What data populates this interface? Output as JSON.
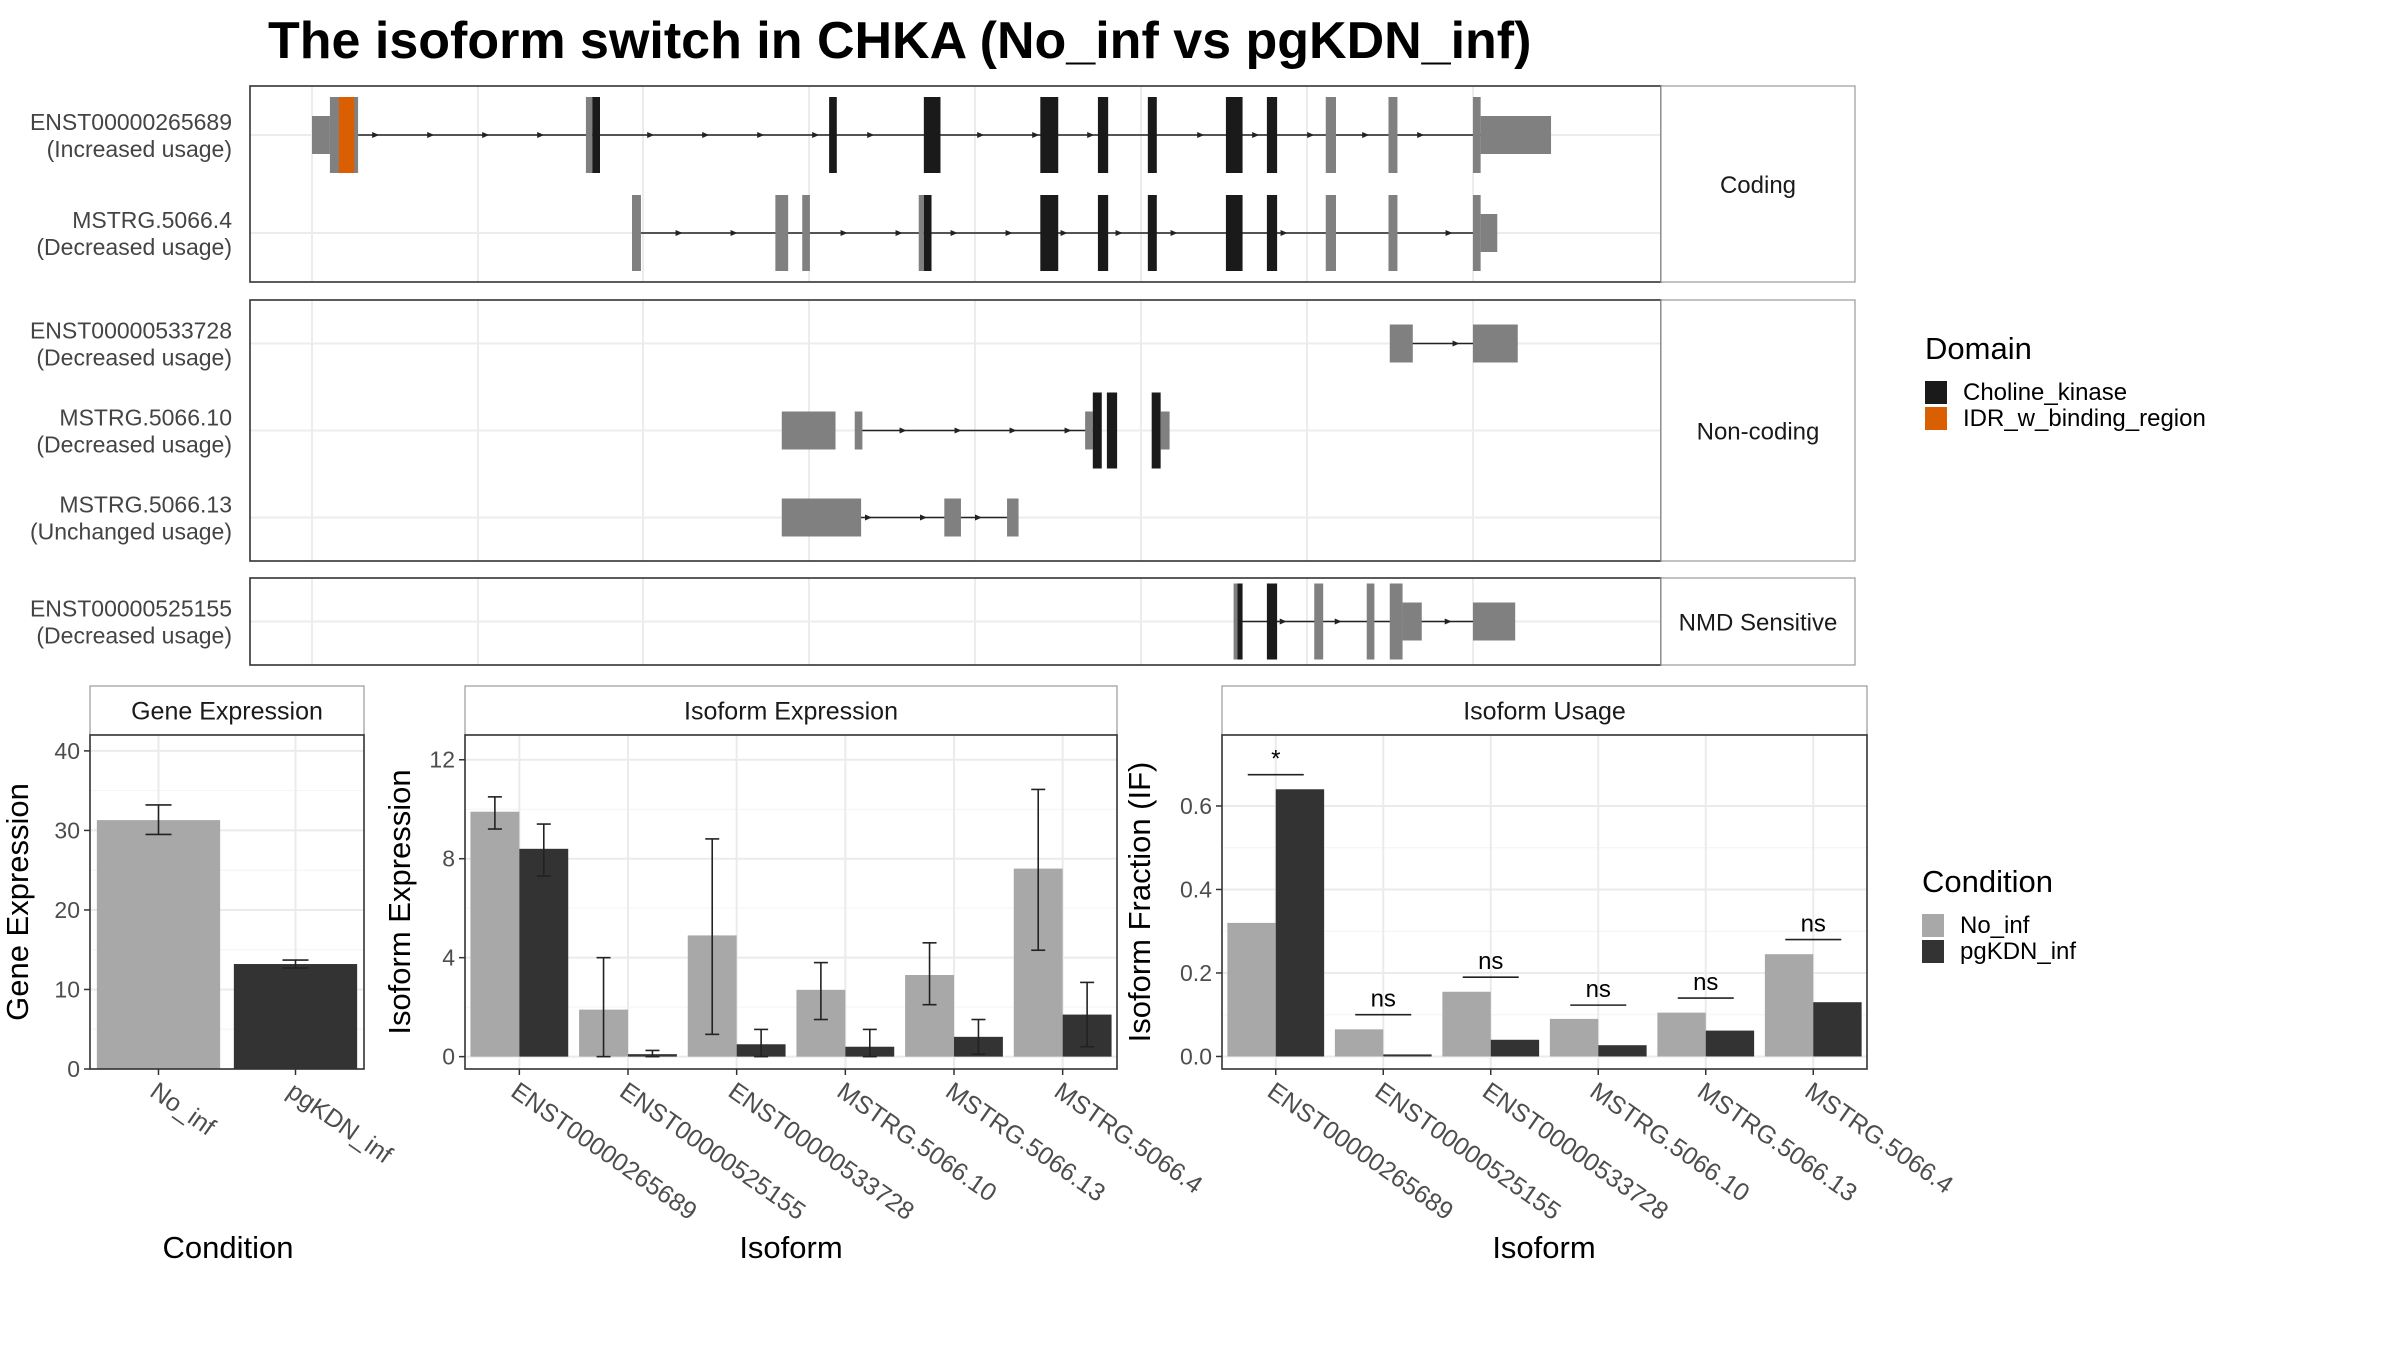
{
  "title": "The isoform switch in CHKA (No_inf vs pgKDN_inf)",
  "structure": {
    "x_range": [
      0,
      1000
    ],
    "panels": [
      {
        "label": "Coding",
        "isoforms": [
          {
            "name": "ENST00000265689",
            "usage": "(Increased usage)",
            "span": [
              15,
              950
            ],
            "exons": [
              {
                "s": 0,
                "e": 14,
                "t": "u"
              },
              {
                "s": 14,
                "e": 36,
                "t": "c"
              },
              {
                "s": 21,
                "e": 33,
                "t": "idr"
              },
              {
                "s": 214,
                "e": 219,
                "t": "c"
              },
              {
                "s": 219,
                "e": 225,
                "t": "d"
              },
              {
                "s": 404,
                "e": 410,
                "t": "d"
              },
              {
                "s": 478,
                "e": 491,
                "t": "d"
              },
              {
                "s": 569,
                "e": 583,
                "t": "d"
              },
              {
                "s": 614,
                "e": 622,
                "t": "d"
              },
              {
                "s": 653,
                "e": 660,
                "t": "d"
              },
              {
                "s": 714,
                "e": 727,
                "t": "d"
              },
              {
                "s": 746,
                "e": 754,
                "t": "d"
              },
              {
                "s": 792,
                "e": 800,
                "t": "c"
              },
              {
                "s": 841,
                "e": 848,
                "t": "c"
              },
              {
                "s": 907,
                "e": 913,
                "t": "c"
              },
              {
                "s": 913,
                "e": 968,
                "t": "u"
              }
            ]
          },
          {
            "name": "MSTRG.5066.4",
            "usage": "(Decreased usage)",
            "span": [
              252,
              910
            ],
            "exons": [
              {
                "s": 250,
                "e": 257,
                "t": "c"
              },
              {
                "s": 362,
                "e": 372,
                "t": "c"
              },
              {
                "s": 383,
                "e": 389,
                "t": "c"
              },
              {
                "s": 474,
                "e": 478,
                "t": "c"
              },
              {
                "s": 478,
                "e": 484,
                "t": "d"
              },
              {
                "s": 569,
                "e": 583,
                "t": "d"
              },
              {
                "s": 614,
                "e": 622,
                "t": "d"
              },
              {
                "s": 653,
                "e": 660,
                "t": "d"
              },
              {
                "s": 714,
                "e": 727,
                "t": "d"
              },
              {
                "s": 746,
                "e": 754,
                "t": "d"
              },
              {
                "s": 792,
                "e": 800,
                "t": "c"
              },
              {
                "s": 841,
                "e": 848,
                "t": "c"
              },
              {
                "s": 907,
                "e": 913,
                "t": "c"
              },
              {
                "s": 913,
                "e": 926,
                "t": "u"
              }
            ]
          }
        ]
      },
      {
        "label": "Non-coding",
        "isoforms": [
          {
            "name": "ENST00000533728",
            "usage": "(Decreased usage)",
            "span": [
              859,
              909
            ],
            "exons": [
              {
                "s": 842,
                "e": 860,
                "t": "u"
              },
              {
                "s": 907,
                "e": 942,
                "t": "u"
              }
            ]
          },
          {
            "name": "MSTRG.5066.10",
            "usage": "(Decreased usage)",
            "span": [
              427,
              614
            ],
            "exons": [
              {
                "s": 367,
                "e": 409,
                "t": "u"
              },
              {
                "s": 424,
                "e": 430,
                "t": "u"
              },
              {
                "s": 604,
                "e": 610,
                "t": "u"
              },
              {
                "s": 610,
                "e": 617,
                "t": "d"
              },
              {
                "s": 621,
                "e": 629,
                "t": "d"
              },
              {
                "s": 656,
                "e": 663,
                "t": "d"
              },
              {
                "s": 663,
                "e": 670,
                "t": "u"
              }
            ]
          },
          {
            "name": "MSTRG.5066.13",
            "usage": "(Unchanged usage)",
            "span": [
              400,
              545
            ],
            "exons": [
              {
                "s": 367,
                "e": 429,
                "t": "u"
              },
              {
                "s": 494,
                "e": 507,
                "t": "u"
              },
              {
                "s": 543,
                "e": 552,
                "t": "u"
              }
            ]
          }
        ]
      },
      {
        "label": "NMD Sensitive",
        "isoforms": [
          {
            "name": "ENST00000525155",
            "usage": "(Decreased usage)",
            "span": [
              724,
              909
            ],
            "exons": [
              {
                "s": 720,
                "e": 723,
                "t": "c"
              },
              {
                "s": 723,
                "e": 727,
                "t": "d"
              },
              {
                "s": 746,
                "e": 754,
                "t": "d"
              },
              {
                "s": 783,
                "e": 790,
                "t": "c"
              },
              {
                "s": 824,
                "e": 830,
                "t": "c"
              },
              {
                "s": 842,
                "e": 852,
                "t": "c"
              },
              {
                "s": 852,
                "e": 867,
                "t": "u"
              },
              {
                "s": 907,
                "e": 940,
                "t": "u"
              }
            ]
          }
        ]
      }
    ]
  },
  "legend_domain": {
    "title": "Domain",
    "items": [
      {
        "label": "Choline_kinase",
        "color": "#1a1a1a"
      },
      {
        "label": "IDR_w_binding_region",
        "color": "#d95f02"
      }
    ]
  },
  "legend_condition": {
    "title": "Condition",
    "items": [
      {
        "label": "No_inf",
        "color": "#a8a8a8"
      },
      {
        "label": "pgKDN_inf",
        "color": "#333333"
      }
    ]
  },
  "colors": {
    "coding_gray": "#808080",
    "utr_gray": "#808080",
    "domain_black": "#1a1a1a",
    "idr_orange": "#d95f02",
    "no_inf": "#a8a8a8",
    "pgkdn_inf": "#333333"
  },
  "chart_data": [
    {
      "type": "bar",
      "title": "Gene Expression",
      "xlabel": "Condition",
      "ylabel": "Gene Expression",
      "ylim": [
        0,
        42
      ],
      "yticks": [
        0,
        10,
        20,
        30,
        40
      ],
      "categories": [
        "No_inf",
        "pgKDN_inf"
      ],
      "values": [
        31.3,
        13.2
      ],
      "err_low": [
        29.5,
        12.7
      ],
      "err_high": [
        33.2,
        13.7
      ]
    },
    {
      "type": "bar",
      "title": "Isoform Expression",
      "xlabel": "Isoform",
      "ylabel": "Isoform Expression",
      "ylim": [
        -0.5,
        13
      ],
      "yticks": [
        0,
        4,
        8,
        12
      ],
      "categories": [
        "ENST00000265689",
        "ENST00000525155",
        "ENST00000533728",
        "MSTRG.5066.10",
        "MSTRG.5066.13",
        "MSTRG.5066.4"
      ],
      "series": [
        {
          "name": "No_inf",
          "values": [
            9.9,
            1.9,
            4.9,
            2.7,
            3.3,
            7.6
          ],
          "err_low": [
            9.2,
            0.0,
            0.9,
            1.5,
            2.1,
            4.3
          ],
          "err_high": [
            10.5,
            4.0,
            8.8,
            3.8,
            4.6,
            10.8
          ]
        },
        {
          "name": "pgKDN_inf",
          "values": [
            8.4,
            0.1,
            0.5,
            0.4,
            0.8,
            1.7
          ],
          "err_low": [
            7.3,
            0.0,
            0.0,
            0.0,
            0.1,
            0.4
          ],
          "err_high": [
            9.4,
            0.25,
            1.1,
            1.1,
            1.5,
            3.0
          ]
        }
      ]
    },
    {
      "type": "bar",
      "title": "Isoform Usage",
      "xlabel": "Isoform",
      "ylabel": "Isoform Fraction (IF)",
      "ylim": [
        -0.03,
        0.77
      ],
      "yticks": [
        0.0,
        0.2,
        0.4,
        0.6
      ],
      "ytick_labels": [
        "0.0",
        "0.2",
        "0.4",
        "0.6"
      ],
      "categories": [
        "ENST00000265689",
        "ENST00000525155",
        "ENST00000533728",
        "MSTRG.5066.10",
        "MSTRG.5066.13",
        "MSTRG.5066.4"
      ],
      "series": [
        {
          "name": "No_inf",
          "values": [
            0.32,
            0.065,
            0.155,
            0.09,
            0.105,
            0.245
          ]
        },
        {
          "name": "pgKDN_inf",
          "values": [
            0.64,
            0.005,
            0.04,
            0.027,
            0.062,
            0.13
          ]
        }
      ],
      "significance": [
        "*",
        "ns",
        "ns",
        "ns",
        "ns",
        "ns"
      ],
      "sig_y": [
        0.675,
        0.1,
        0.19,
        0.123,
        0.14,
        0.28
      ]
    }
  ]
}
